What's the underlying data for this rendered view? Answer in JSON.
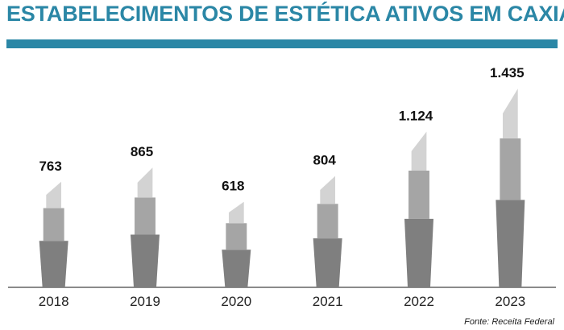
{
  "title": "ESTABELECIMENTOS DE ESTÉTICA ATIVOS EM CAXIAS",
  "source": "Fonte: Receita Federal",
  "colors": {
    "title": "#2b87a6",
    "bar_top": "#d3d3d3",
    "bar_middle": "#a5a5a5",
    "bar_base": "#7f7f7f",
    "axis": "#8a8a8a",
    "label": "#111111"
  },
  "chart_data": {
    "type": "bar",
    "style": "lipstick pictogram bars",
    "categories": [
      "2018",
      "2019",
      "2020",
      "2021",
      "2022",
      "2023"
    ],
    "values": [
      763,
      865,
      618,
      804,
      1124,
      1435
    ],
    "value_labels": [
      "763",
      "865",
      "618",
      "804",
      "1.124",
      "1.435"
    ],
    "title": "ESTABELECIMENTOS DE ESTÉTICA ATIVOS EM CAXIAS",
    "xlabel": "",
    "ylabel": "",
    "ylim": [
      0,
      1500
    ],
    "grid": false,
    "legend": "none"
  }
}
